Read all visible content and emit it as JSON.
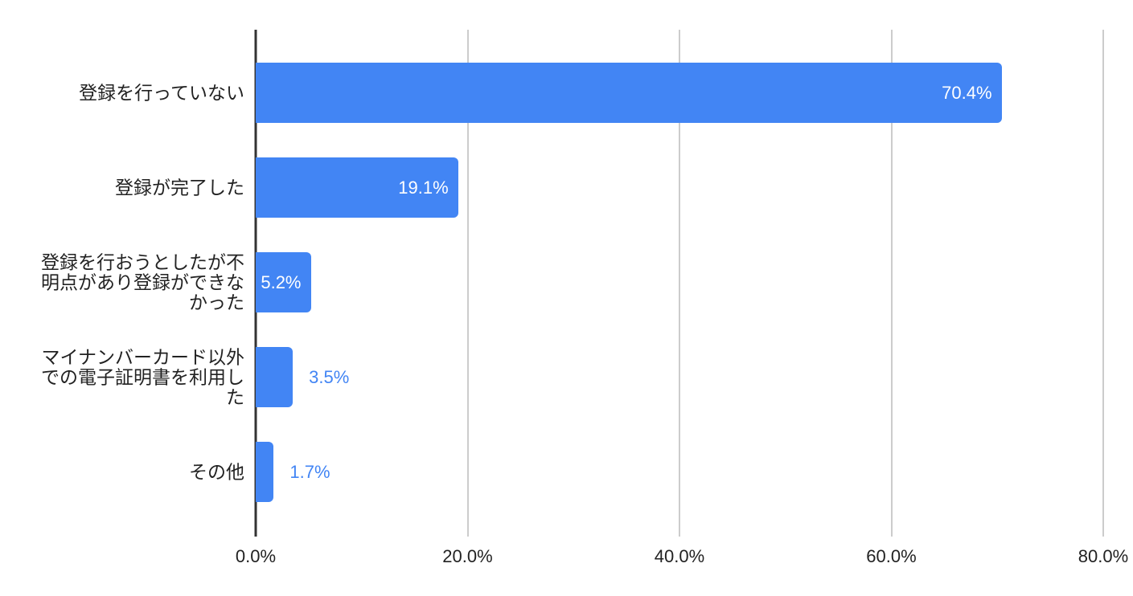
{
  "chart_data": {
    "type": "bar",
    "orientation": "horizontal",
    "title": "",
    "xlabel": "",
    "ylabel": "",
    "xlim": [
      0,
      80
    ],
    "x_tick_step": 20,
    "x_ticks": [
      "0.0%",
      "20.0%",
      "40.0%",
      "60.0%",
      "80.0%"
    ],
    "grid": true,
    "legend": "none",
    "categories": [
      "登録を行っていない",
      "登録が完了した",
      "登録を行おうとしたが不明点があり登録ができなかった",
      "マイナンバーカード以外での電子証明書を利用した",
      "その他"
    ],
    "values": [
      70.4,
      19.1,
      5.2,
      3.5,
      1.7
    ],
    "value_labels": [
      "70.4%",
      "19.1%",
      "5.2%",
      "3.5%",
      "1.7%"
    ],
    "value_label_placement": [
      "inside",
      "inside",
      "inside",
      "outside",
      "outside"
    ],
    "colors": {
      "bar": "#4285f4",
      "value_label_inside": "#ffffff",
      "value_label_outside": "#4285f4",
      "axis_line": "#333333",
      "gridline": "#cccccc",
      "text": "#222222",
      "background": "#ffffff"
    }
  }
}
